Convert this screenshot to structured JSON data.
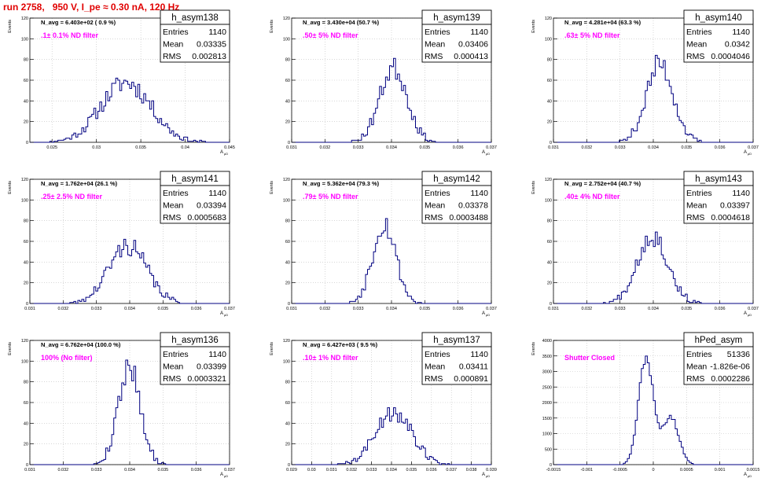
{
  "page_title": "run 2758,   950 V, I_pe ≈ 0.30 nA, 120 Hz",
  "stat_labels": {
    "entries": "Entries",
    "mean": "Mean",
    "rms": "RMS"
  },
  "y_axis_label": "Events",
  "x_axis_label": "A",
  "x_axis_label_sub": "μD",
  "colors": {
    "hist": "#000080",
    "annotation": "#ff00ff",
    "title": "#e00000",
    "grid": "#bfbfbf"
  },
  "chart_data": [
    {
      "type": "bar",
      "name": "h_asym138",
      "navg": "N_avg = 6.403e+02 ( 0.9 %)",
      "filter": ".1± 0.1% ND filter",
      "stats": {
        "entries": "1140",
        "mean": "0.03335",
        "rms": "0.002813"
      },
      "xlim": [
        0.0225,
        0.045
      ],
      "ylim": [
        0,
        120
      ],
      "xticks": [
        "0.025",
        "0.03",
        "0.035",
        "0.04",
        "0.045"
      ],
      "xtick_values": [
        0.025,
        0.03,
        0.035,
        0.04,
        0.045
      ],
      "yticks": [
        "0",
        "20",
        "40",
        "60",
        "80",
        "100",
        "120"
      ],
      "ytick_values": [
        0,
        20,
        40,
        60,
        80,
        100,
        120
      ],
      "hist": {
        "mean": 0.03335,
        "rms": 0.002813,
        "peak": 58,
        "spread": 2.6,
        "seed": 11
      }
    },
    {
      "type": "bar",
      "name": "h_asym139",
      "navg": "N_avg = 3.430e+04 (50.7 %)",
      "filter": ".50± 5% ND filter",
      "stats": {
        "entries": "1140",
        "mean": "0.03406",
        "rms": "0.000413"
      },
      "xlim": [
        0.031,
        0.037
      ],
      "ylim": [
        0,
        120
      ],
      "xticks": [
        "0.031",
        "0.032",
        "0.033",
        "0.034",
        "0.035",
        "0.036",
        "0.037"
      ],
      "xtick_values": [
        0.031,
        0.032,
        0.033,
        0.034,
        0.035,
        0.036,
        0.037
      ],
      "yticks": [
        "0",
        "20",
        "40",
        "60",
        "80",
        "100",
        "120"
      ],
      "ytick_values": [
        0,
        20,
        40,
        60,
        80,
        100,
        120
      ],
      "hist": {
        "mean": 0.03406,
        "rms": 0.000413,
        "peak": 72,
        "spread": 2.6,
        "seed": 23
      }
    },
    {
      "type": "bar",
      "name": "h_asym140",
      "navg": "N_avg = 4.281e+04 (63.3 %)",
      "filter": ".63± 5% ND filter",
      "stats": {
        "entries": "1140",
        "mean": "0.0342",
        "rms": "0.0004046"
      },
      "xlim": [
        0.031,
        0.037
      ],
      "ylim": [
        0,
        120
      ],
      "xticks": [
        "0.031",
        "0.032",
        "0.033",
        "0.034",
        "0.035",
        "0.036",
        "0.037"
      ],
      "xtick_values": [
        0.031,
        0.032,
        0.033,
        0.034,
        0.035,
        0.036,
        0.037
      ],
      "yticks": [
        "0",
        "20",
        "40",
        "60",
        "80",
        "100",
        "120"
      ],
      "ytick_values": [
        0,
        20,
        40,
        60,
        80,
        100,
        120
      ],
      "hist": {
        "mean": 0.0342,
        "rms": 0.0004046,
        "peak": 76,
        "spread": 2.6,
        "seed": 37
      }
    },
    {
      "type": "bar",
      "name": "h_asym141",
      "navg": "N_avg = 1.762e+04 (26.1 %)",
      "filter": ".25± 2.5% ND filter",
      "stats": {
        "entries": "1140",
        "mean": "0.03394",
        "rms": "0.0005683"
      },
      "xlim": [
        0.031,
        0.037
      ],
      "ylim": [
        0,
        120
      ],
      "xticks": [
        "0.031",
        "0.032",
        "0.033",
        "0.034",
        "0.035",
        "0.036",
        "0.037"
      ],
      "xtick_values": [
        0.031,
        0.032,
        0.033,
        0.034,
        0.035,
        0.036,
        0.037
      ],
      "yticks": [
        "0",
        "20",
        "40",
        "60",
        "80",
        "100",
        "120"
      ],
      "ytick_values": [
        0,
        20,
        40,
        60,
        80,
        100,
        120
      ],
      "hist": {
        "mean": 0.03394,
        "rms": 0.0005683,
        "peak": 56,
        "spread": 2.6,
        "seed": 41
      }
    },
    {
      "type": "bar",
      "name": "h_asym142",
      "navg": "N_avg = 5.362e+04 (79.3 %)",
      "filter": ".79± 5% ND filter",
      "stats": {
        "entries": "1140",
        "mean": "0.03378",
        "rms": "0.0003488"
      },
      "xlim": [
        0.031,
        0.037
      ],
      "ylim": [
        0,
        120
      ],
      "xticks": [
        "0.031",
        "0.032",
        "0.033",
        "0.034",
        "0.035",
        "0.036",
        "0.037"
      ],
      "xtick_values": [
        0.031,
        0.032,
        0.033,
        0.034,
        0.035,
        0.036,
        0.037
      ],
      "yticks": [
        "0",
        "20",
        "40",
        "60",
        "80",
        "100",
        "120"
      ],
      "ytick_values": [
        0,
        20,
        40,
        60,
        80,
        100,
        120
      ],
      "hist": {
        "mean": 0.03378,
        "rms": 0.0003488,
        "peak": 78,
        "spread": 2.6,
        "seed": 53
      }
    },
    {
      "type": "bar",
      "name": "h_asym143",
      "navg": "N_avg = 2.752e+04 (40.7 %)",
      "filter": ".40± 4% ND filter",
      "stats": {
        "entries": "1140",
        "mean": "0.03397",
        "rms": "0.0004618"
      },
      "xlim": [
        0.031,
        0.037
      ],
      "ylim": [
        0,
        120
      ],
      "xticks": [
        "0.031",
        "0.032",
        "0.033",
        "0.034",
        "0.035",
        "0.036",
        "0.037"
      ],
      "xtick_values": [
        0.031,
        0.032,
        0.033,
        0.034,
        0.035,
        0.036,
        0.037
      ],
      "yticks": [
        "0",
        "20",
        "40",
        "60",
        "80",
        "100",
        "120"
      ],
      "ytick_values": [
        0,
        20,
        40,
        60,
        80,
        100,
        120
      ],
      "hist": {
        "mean": 0.03397,
        "rms": 0.0004618,
        "peak": 66,
        "spread": 2.6,
        "seed": 67
      }
    },
    {
      "type": "bar",
      "name": "h_asym136",
      "navg": "N_avg = 6.762e+04 (100.0 %)",
      "filter": "100% (No filter)",
      "stats": {
        "entries": "1140",
        "mean": "0.03399",
        "rms": "0.0003321"
      },
      "xlim": [
        0.031,
        0.037
      ],
      "ylim": [
        0,
        120
      ],
      "xticks": [
        "0.031",
        "0.032",
        "0.033",
        "0.034",
        "0.035",
        "0.036",
        "0.037"
      ],
      "xtick_values": [
        0.031,
        0.032,
        0.033,
        0.034,
        0.035,
        0.036,
        0.037
      ],
      "yticks": [
        "0",
        "20",
        "40",
        "60",
        "80",
        "100",
        "120"
      ],
      "ytick_values": [
        0,
        20,
        40,
        60,
        80,
        100,
        120
      ],
      "hist": {
        "mean": 0.03399,
        "rms": 0.0003321,
        "peak": 96,
        "spread": 2.6,
        "seed": 79
      }
    },
    {
      "type": "bar",
      "name": "h_asym137",
      "navg": "N_avg = 6.427e+03 ( 9.5 %)",
      "filter": ".10± 1% ND filter",
      "stats": {
        "entries": "1140",
        "mean": "0.03411",
        "rms": "0.000891"
      },
      "xlim": [
        0.029,
        0.039
      ],
      "ylim": [
        0,
        120
      ],
      "xticks": [
        "0.029",
        "0.03",
        "0.031",
        "0.032",
        "0.033",
        "0.034",
        "0.035",
        "0.036",
        "0.037",
        "0.038",
        "0.039"
      ],
      "xtick_values": [
        0.029,
        0.03,
        0.031,
        0.032,
        0.033,
        0.034,
        0.035,
        0.036,
        0.037,
        0.038,
        0.039
      ],
      "yticks": [
        "0",
        "20",
        "40",
        "60",
        "80",
        "100",
        "120"
      ],
      "ytick_values": [
        0,
        20,
        40,
        60,
        80,
        100,
        120
      ],
      "hist": {
        "mean": 0.03411,
        "rms": 0.000891,
        "peak": 52,
        "spread": 2.6,
        "seed": 89
      }
    },
    {
      "type": "bar",
      "name": "hPed_asym",
      "navg": "",
      "filter": "Shutter Closed",
      "stats": {
        "entries": "51336",
        "mean": "-1.826e-06",
        "rms": "0.0002286"
      },
      "xlim": [
        -0.0015,
        0.0015
      ],
      "ylim": [
        0,
        4000
      ],
      "xticks": [
        "-0.0015",
        "-0.001",
        "-0.0005",
        "0",
        "0.0005",
        "0.001",
        "0.0015"
      ],
      "xtick_values": [
        -0.0015,
        -0.001,
        -0.0005,
        0,
        0.0005,
        0.001,
        0.0015
      ],
      "yticks": [
        "0",
        "500",
        "1000",
        "1500",
        "2000",
        "2500",
        "3000",
        "3500",
        "4000"
      ],
      "ytick_values": [
        0,
        500,
        1000,
        1500,
        2000,
        2500,
        3000,
        3500,
        4000
      ],
      "hist": {
        "bimodal": true,
        "m1": -0.00011,
        "s1": 0.00011,
        "h1": 3450,
        "m2": 0.00026,
        "s2": 0.00012,
        "h2": 1550,
        "seed": 97
      }
    }
  ]
}
